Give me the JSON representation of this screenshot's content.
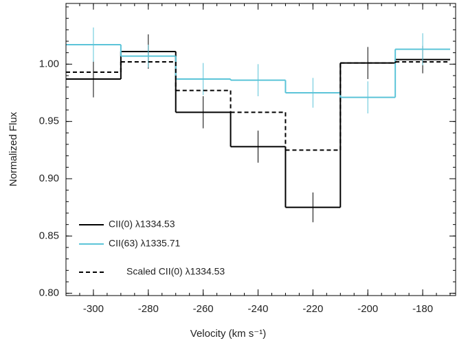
{
  "chart_data": {
    "type": "step",
    "xlabel": "Velocity (km s⁻¹)",
    "ylabel": "Normalized Flux",
    "xlim": [
      -310,
      -168
    ],
    "ylim": [
      0.798,
      1.053
    ],
    "xticks": [
      -300,
      -280,
      -260,
      -240,
      -220,
      -200,
      -180
    ],
    "yticks": [
      {
        "value": 0.8,
        "label": "0.80"
      },
      {
        "value": 0.85,
        "label": "0.85"
      },
      {
        "value": 0.9,
        "label": "0.90"
      },
      {
        "value": 0.95,
        "label": "0.95"
      },
      {
        "value": 1,
        "label": "1.00"
      }
    ],
    "x": [
      -300,
      -280,
      -260,
      -240,
      -220,
      -200,
      -180
    ],
    "bin_width": 20,
    "legend": "lower left",
    "series": [
      {
        "name": "CII(0) λ1334.53",
        "color": "#000000",
        "dash": false,
        "values": [
          0.987,
          1.011,
          0.958,
          0.928,
          0.875,
          1.001,
          1.004
        ],
        "errors": [
          0.016,
          0.015,
          0.014,
          0.014,
          0.013,
          0.014,
          0.012
        ]
      },
      {
        "name": "CII(63) λ1335.71",
        "color": "#5bc4d8",
        "dash": false,
        "values": [
          1.017,
          1.007,
          0.987,
          0.986,
          0.975,
          0.971,
          1.013
        ],
        "errors": [
          0.015,
          0.01,
          0.014,
          0.014,
          0.013,
          0.014,
          0.014
        ]
      },
      {
        "name": "Scaled CII(0) λ1334.53",
        "color": "#000000",
        "dash": true,
        "values": [
          0.993,
          1.002,
          0.977,
          0.958,
          0.925,
          1.001,
          1.002
        ]
      }
    ]
  }
}
